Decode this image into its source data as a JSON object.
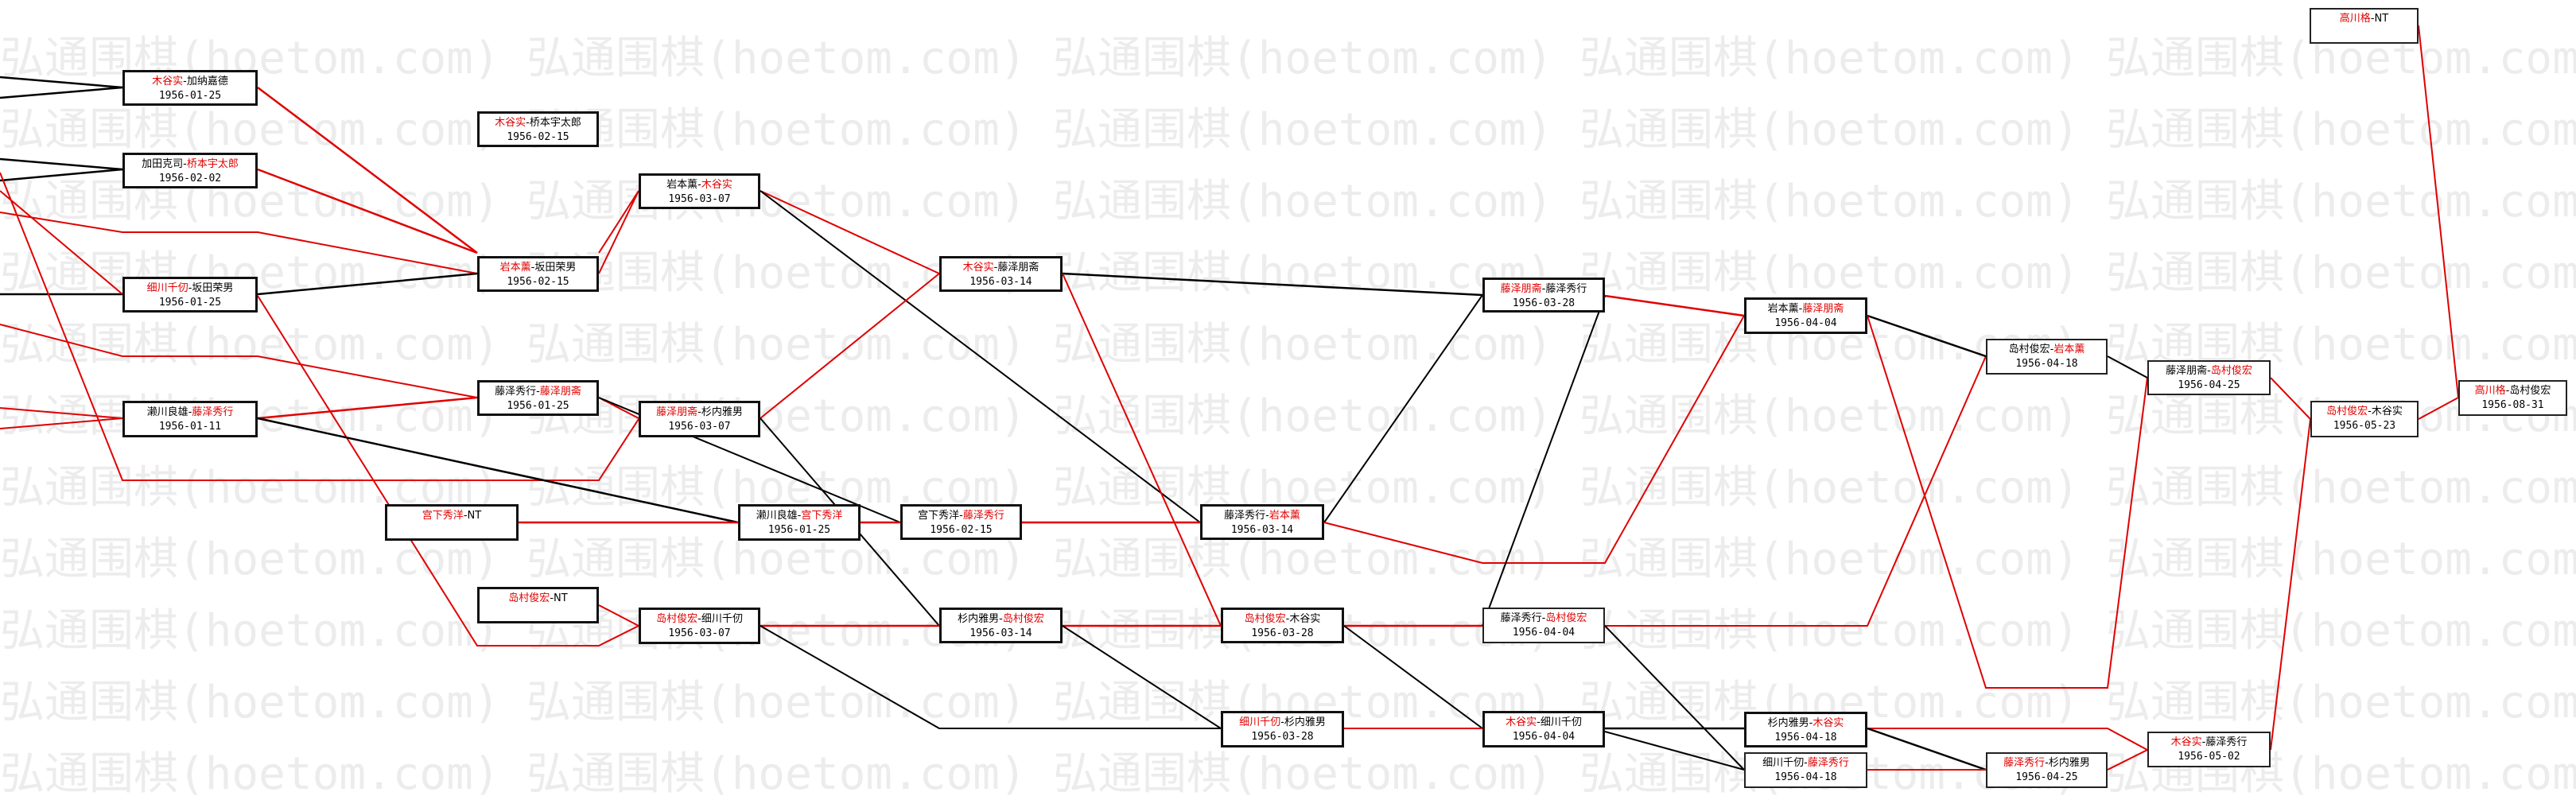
{
  "watermark": "弘通围棋(hoetom.com)",
  "colors": {
    "winner": "#e00000",
    "winner_line": "#e00000",
    "loser_line": "#000000",
    "box_border": "#111111",
    "watermark": "#ececec"
  },
  "matches": [
    {
      "p1": "木谷实",
      "p2": "加纳嘉德",
      "winner": 1,
      "date": "1956-01-25"
    },
    {
      "p1": "加田克司",
      "p2": "桥本宇太郎",
      "winner": 2,
      "date": "1956-02-02"
    },
    {
      "p1": "细川千仞",
      "p2": "坂田荣男",
      "winner": 1,
      "date": "1956-01-25"
    },
    {
      "p1": "濑川良雄",
      "p2": "藤泽秀行",
      "winner": 2,
      "date": "1956-01-11"
    },
    {
      "p1": "木谷实",
      "p2": "桥本宇太郎",
      "winner": 1,
      "date": "1956-02-15"
    },
    {
      "p1": "岩本薰",
      "p2": "坂田荣男",
      "winner": 1,
      "date": "1956-02-15"
    },
    {
      "p1": "藤泽秀行",
      "p2": "藤泽朋斋",
      "winner": 2,
      "date": "1956-01-25"
    },
    {
      "p1": "宫下秀洋",
      "p2": "NT",
      "winner": 1,
      "date": ""
    },
    {
      "p1": "岛村俊宏",
      "p2": "NT",
      "winner": 1,
      "date": ""
    },
    {
      "p1": "岩本薰",
      "p2": "木谷实",
      "winner": 2,
      "date": "1956-03-07"
    },
    {
      "p1": "藤泽朋斋",
      "p2": "杉内雅男",
      "winner": 1,
      "date": "1956-03-07"
    },
    {
      "p1": "濑川良雄",
      "p2": "宫下秀洋",
      "winner": 2,
      "date": "1956-01-25"
    },
    {
      "p1": "岛村俊宏",
      "p2": "细川千仞",
      "winner": 1,
      "date": "1956-03-07"
    },
    {
      "p1": "木谷实",
      "p2": "藤泽朋斋",
      "winner": 1,
      "date": "1956-03-14"
    },
    {
      "p1": "宫下秀洋",
      "p2": "藤泽秀行",
      "winner": 2,
      "date": "1956-02-15"
    },
    {
      "p1": "杉内雅男",
      "p2": "岛村俊宏",
      "winner": 2,
      "date": "1956-03-14"
    },
    {
      "p1": "藤泽秀行",
      "p2": "岩本薰",
      "winner": 2,
      "date": "1956-03-14"
    },
    {
      "p1": "岛村俊宏",
      "p2": "木谷实",
      "winner": 1,
      "date": "1956-03-28"
    },
    {
      "p1": "细川千仞",
      "p2": "杉内雅男",
      "winner": 1,
      "date": "1956-03-28"
    },
    {
      "p1": "藤泽朋斋",
      "p2": "藤泽秀行",
      "winner": 1,
      "date": "1956-03-28"
    },
    {
      "p1": "藤泽秀行",
      "p2": "岛村俊宏",
      "winner": 2,
      "date": "1956-04-04"
    },
    {
      "p1": "木谷实",
      "p2": "细川千仞",
      "winner": 1,
      "date": "1956-04-04"
    },
    {
      "p1": "岩本薰",
      "p2": "藤泽朋斋",
      "winner": 2,
      "date": "1956-04-04"
    },
    {
      "p1": "杉内雅男",
      "p2": "木谷实",
      "winner": 2,
      "date": "1956-04-18"
    },
    {
      "p1": "细川千仞",
      "p2": "藤泽秀行",
      "winner": 2,
      "date": "1956-04-18"
    },
    {
      "p1": "岛村俊宏",
      "p2": "岩本薰",
      "winner": 2,
      "date": "1956-04-18"
    },
    {
      "p1": "藤泽秀行",
      "p2": "杉内雅男",
      "winner": 1,
      "date": "1956-04-25"
    },
    {
      "p1": "藤泽朋斋",
      "p2": "岛村俊宏",
      "winner": 2,
      "date": "1956-04-25"
    },
    {
      "p1": "木谷实",
      "p2": "藤泽秀行",
      "winner": 1,
      "date": "1956-05-02"
    },
    {
      "p1": "岛村俊宏",
      "p2": "木谷实",
      "winner": 1,
      "date": "1956-05-23"
    },
    {
      "p1": "高川格",
      "p2": "岛村俊宏",
      "winner": 1,
      "date": "1956-08-31"
    },
    {
      "p1": "高川格",
      "p2": "NT",
      "winner": 1,
      "date": ""
    }
  ]
}
